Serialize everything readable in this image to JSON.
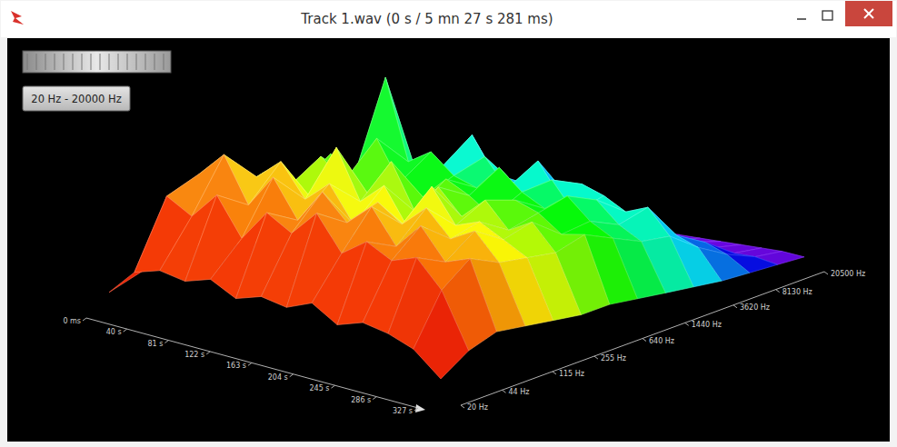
{
  "chart_data": {
    "type": "surface3d",
    "title": "Track 1.wav (0 s / 5 mn 27 s 281 ms)",
    "annotations": [
      "20 Hz - 20000 Hz"
    ],
    "log": "y",
    "x": [
      0,
      25,
      50,
      75,
      100,
      125,
      150,
      175,
      200,
      225,
      250,
      275,
      300,
      327
    ],
    "y": [
      20,
      34,
      58,
      100,
      170,
      290,
      500,
      850,
      1450,
      2480,
      4230,
      7220,
      12300,
      20500
    ],
    "values": [
      [
        5,
        12,
        18,
        20,
        16,
        14,
        12,
        10,
        8,
        6,
        4,
        3,
        2,
        1
      ],
      [
        18,
        52,
        60,
        48,
        55,
        44,
        58,
        40,
        36,
        30,
        22,
        12,
        5,
        2
      ],
      [
        22,
        45,
        72,
        58,
        50,
        62,
        48,
        96,
        42,
        38,
        26,
        14,
        6,
        2
      ],
      [
        20,
        58,
        50,
        68,
        46,
        52,
        70,
        55,
        48,
        62,
        30,
        16,
        6,
        2
      ],
      [
        24,
        40,
        66,
        52,
        74,
        48,
        50,
        62,
        40,
        44,
        35,
        18,
        7,
        2
      ],
      [
        18,
        55,
        48,
        62,
        50,
        66,
        45,
        52,
        58,
        40,
        28,
        22,
        6,
        2
      ],
      [
        22,
        48,
        64,
        45,
        60,
        44,
        56,
        48,
        44,
        54,
        32,
        15,
        5,
        2
      ],
      [
        20,
        60,
        52,
        58,
        42,
        58,
        50,
        60,
        40,
        38,
        26,
        20,
        6,
        2
      ],
      [
        25,
        44,
        62,
        50,
        64,
        46,
        42,
        50,
        52,
        46,
        30,
        14,
        5,
        2
      ],
      [
        18,
        52,
        46,
        60,
        48,
        56,
        52,
        44,
        38,
        42,
        24,
        16,
        6,
        2
      ],
      [
        22,
        46,
        58,
        48,
        52,
        44,
        48,
        52,
        46,
        36,
        28,
        12,
        5,
        2
      ],
      [
        20,
        50,
        44,
        54,
        46,
        50,
        40,
        42,
        36,
        40,
        22,
        14,
        4,
        2
      ],
      [
        16,
        38,
        48,
        42,
        40,
        38,
        42,
        36,
        30,
        28,
        18,
        10,
        4,
        2
      ],
      [
        6,
        14,
        18,
        16,
        14,
        12,
        12,
        10,
        8,
        6,
        4,
        3,
        2,
        1
      ]
    ],
    "xlim": [
      0,
      327
    ],
    "xticks": [
      {
        "value": 0,
        "label": "0 ms"
      },
      {
        "value": 40,
        "label": "40 s"
      },
      {
        "value": 81,
        "label": "81 s"
      },
      {
        "value": 122,
        "label": "122 s"
      },
      {
        "value": 163,
        "label": "163 s"
      },
      {
        "value": 204,
        "label": "204 s"
      },
      {
        "value": 245,
        "label": "245 s"
      },
      {
        "value": 286,
        "label": "286 s"
      },
      {
        "value": 327,
        "label": "327 s"
      }
    ],
    "ylim": [
      20,
      20500
    ],
    "yticks": [
      {
        "value": 20,
        "label": "20 Hz"
      },
      {
        "value": 44,
        "label": "44 Hz"
      },
      {
        "value": 115,
        "label": "115 Hz"
      },
      {
        "value": 255,
        "label": "255 Hz"
      },
      {
        "value": 640,
        "label": "640 Hz"
      },
      {
        "value": 1440,
        "label": "1440 Hz"
      },
      {
        "value": 3620,
        "label": "3620 Hz"
      },
      {
        "value": 8130,
        "label": "8130 Hz"
      },
      {
        "value": 20500,
        "label": "20500 Hz"
      }
    ],
    "zlim": [
      0,
      100
    ]
  }
}
